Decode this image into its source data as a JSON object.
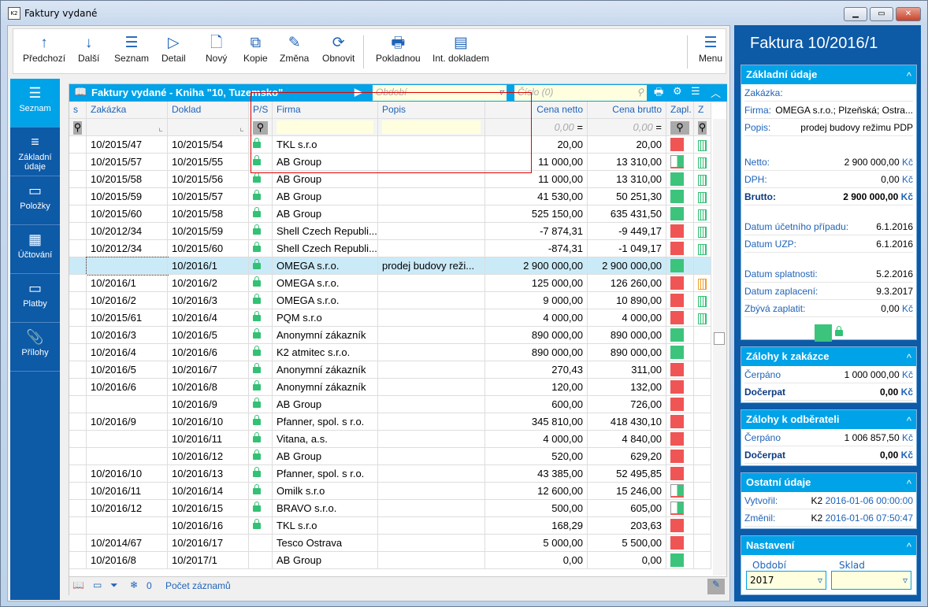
{
  "window": {
    "title": "Faktury vydané",
    "app_icon": "K2"
  },
  "toolbar": [
    {
      "label": "Předchozí",
      "icon": "↑"
    },
    {
      "label": "Další",
      "icon": "↓"
    },
    {
      "label": "Seznam",
      "icon": "☰"
    },
    {
      "label": "Detail",
      "icon": "▷"
    },
    {
      "label": "Nový",
      "icon": "🗋"
    },
    {
      "label": "Kopie",
      "icon": "⧉"
    },
    {
      "label": "Změna",
      "icon": "✎"
    },
    {
      "label": "Obnovit",
      "icon": "⟳"
    },
    {
      "label": "Pokladnou",
      "icon": "🖶"
    },
    {
      "label": "Int. dokladem",
      "icon": "▤"
    },
    {
      "label": "Menu",
      "icon": "☰"
    }
  ],
  "sidebar": [
    {
      "label": "Seznam",
      "icon": "☰"
    },
    {
      "label": "Základní údaje",
      "icon": "≡"
    },
    {
      "label": "Položky",
      "icon": "▭"
    },
    {
      "label": "Účtování",
      "icon": "▦"
    },
    {
      "label": "Platby",
      "icon": "▭"
    },
    {
      "label": "Přílohy",
      "icon": "📎"
    }
  ],
  "grid": {
    "title": "Faktury vydané - Kniha \"10, Tuzemsko\"",
    "period_placeholder": "Období",
    "number_placeholder": "Číslo (0)",
    "columns": [
      "s",
      "Zakázka",
      "Doklad",
      "P/S",
      "Firma",
      "Popis",
      "Cena netto",
      "Cena brutto",
      "Zapl.",
      "Z"
    ],
    "filter_netto": "0,00",
    "filter_brutto": "0,00",
    "colors": {
      "paid": "#3cc47c",
      "unpaid": "#f05555",
      "accent": "#00a2e8"
    },
    "rows": [
      [
        "10/2015/47",
        "10/2015/54",
        1,
        "TKL s.r.o",
        "",
        "20,00",
        "20,00",
        "unpaid",
        "green"
      ],
      [
        "10/2015/57",
        "10/2015/55",
        1,
        "AB Group",
        "",
        "11 000,00",
        "13 310,00",
        "partial",
        "green"
      ],
      [
        "10/2015/58",
        "10/2015/56",
        1,
        "AB Group",
        "",
        "11 000,00",
        "13 310,00",
        "paid",
        "green"
      ],
      [
        "10/2015/59",
        "10/2015/57",
        1,
        "AB Group",
        "",
        "41 530,00",
        "50 251,30",
        "paid",
        "green"
      ],
      [
        "10/2015/60",
        "10/2015/58",
        1,
        "AB Group",
        "",
        "525 150,00",
        "635 431,50",
        "paid",
        "green"
      ],
      [
        "10/2012/34",
        "10/2015/59",
        1,
        "Shell Czech Republi...",
        "",
        "-7 874,31",
        "-9 449,17",
        "unpaid",
        "green"
      ],
      [
        "10/2012/34",
        "10/2015/60",
        1,
        "Shell Czech Republi...",
        "",
        "-874,31",
        "-1 049,17",
        "unpaid",
        "green"
      ],
      [
        "",
        "10/2016/1",
        1,
        "OMEGA s.r.o.",
        "prodej budovy reži...",
        "2 900 000,00",
        "2 900 000,00",
        "paid",
        ""
      ],
      [
        "10/2016/1",
        "10/2016/2",
        1,
        "OMEGA s.r.o.",
        "",
        "125 000,00",
        "126 260,00",
        "unpaid",
        "orange"
      ],
      [
        "10/2016/2",
        "10/2016/3",
        1,
        "OMEGA s.r.o.",
        "",
        "9 000,00",
        "10 890,00",
        "unpaid",
        "green"
      ],
      [
        "10/2015/61",
        "10/2016/4",
        1,
        "PQM s.r.o",
        "",
        "4 000,00",
        "4 000,00",
        "unpaid",
        "green"
      ],
      [
        "10/2016/3",
        "10/2016/5",
        1,
        "Anonymní zákazník",
        "",
        "890 000,00",
        "890 000,00",
        "paid",
        ""
      ],
      [
        "10/2016/4",
        "10/2016/6",
        1,
        "K2 atmitec s.r.o.",
        "",
        "890 000,00",
        "890 000,00",
        "paid",
        ""
      ],
      [
        "10/2016/5",
        "10/2016/7",
        1,
        "Anonymní zákazník",
        "",
        "270,43",
        "311,00",
        "unpaid",
        ""
      ],
      [
        "10/2016/6",
        "10/2016/8",
        1,
        "Anonymní zákazník",
        "",
        "120,00",
        "132,00",
        "unpaid",
        ""
      ],
      [
        "",
        "10/2016/9",
        1,
        "AB Group",
        "",
        "600,00",
        "726,00",
        "unpaid",
        ""
      ],
      [
        "10/2016/9",
        "10/2016/10",
        1,
        "Pfanner, spol. s r.o.",
        "",
        "345 810,00",
        "418 430,10",
        "unpaid",
        ""
      ],
      [
        "",
        "10/2016/11",
        1,
        "Vitana, a.s.",
        "",
        "4 000,00",
        "4 840,00",
        "unpaid",
        ""
      ],
      [
        "",
        "10/2016/12",
        1,
        "AB Group",
        "",
        "520,00",
        "629,20",
        "unpaid",
        ""
      ],
      [
        "10/2016/10",
        "10/2016/13",
        1,
        "Pfanner, spol. s r.o.",
        "",
        "43 385,00",
        "52 495,85",
        "unpaid",
        ""
      ],
      [
        "10/2016/11",
        "10/2016/14",
        1,
        "Omilk s.r.o",
        "",
        "12 600,00",
        "15 246,00",
        "partial",
        ""
      ],
      [
        "10/2016/12",
        "10/2016/15",
        1,
        "BRAVO s.r.o.",
        "",
        "500,00",
        "605,00",
        "partial",
        ""
      ],
      [
        "",
        "10/2016/16",
        1,
        "TKL s.r.o",
        "",
        "168,29",
        "203,63",
        "unpaid",
        ""
      ],
      [
        "10/2014/67",
        "10/2016/17",
        0,
        "Tesco Ostrava",
        "",
        "5 000,00",
        "5 500,00",
        "unpaid",
        ""
      ],
      [
        "10/2016/8",
        "10/2017/1",
        0,
        "AB Group",
        "",
        "0,00",
        "0,00",
        "paid",
        ""
      ]
    ],
    "selected_row": 7,
    "status": {
      "count": "0",
      "records_label": "Počet záznamů"
    }
  },
  "panel": {
    "title": "Faktura 10/2016/1",
    "basic": {
      "header": "Základní údaje",
      "zakazka_label": "Zakázka:",
      "zakazka": "",
      "firma_label": "Firma:",
      "firma": "OMEGA s.r.o.; Plzeňská; Ostra...",
      "popis_label": "Popis:",
      "popis": "prodej budovy režimu PDP",
      "netto_label": "Netto:",
      "netto": "2 900 000,00",
      "dph_label": "DPH:",
      "dph": "0,00",
      "brutto_label": "Brutto:",
      "brutto": "2 900 000,00",
      "currency": "Kč",
      "ducp_label": "Datum účetního případu:",
      "ducp": "6.1.2016",
      "duzp_label": "Datum UZP:",
      "duzp": "6.1.2016",
      "splat_label": "Datum splatnosti:",
      "splat": "5.2.2016",
      "zapl_label": "Datum zaplacení:",
      "zapl": "9.3.2017",
      "zbyva_label": "Zbývá zaplatit:",
      "zbyva": "0,00"
    },
    "zal_zakazka": {
      "header": "Zálohy k zakázce",
      "cerpano_label": "Čerpáno",
      "cerpano": "1 000 000,00",
      "docerpat_label": "Dočerpat",
      "docerpat": "0,00"
    },
    "zal_odberatel": {
      "header": "Zálohy k odběrateli",
      "cerpano_label": "Čerpáno",
      "cerpano": "1 006 857,50",
      "docerpat_label": "Dočerpat",
      "docerpat": "0,00"
    },
    "ostatni": {
      "header": "Ostatní údaje",
      "vytvoril_label": "Vytvořil:",
      "vytvoril_user": "K2",
      "vytvoril": "2016-01-06 00:00:00",
      "zmenil_label": "Změnil:",
      "zmenil_user": "K2",
      "zmenil": "2016-01-06 07:50:47"
    },
    "nastaveni": {
      "header": "Nastavení",
      "obdobi_label": "Období",
      "obdobi": "2017",
      "sklad_label": "Sklad",
      "sklad": ""
    }
  }
}
